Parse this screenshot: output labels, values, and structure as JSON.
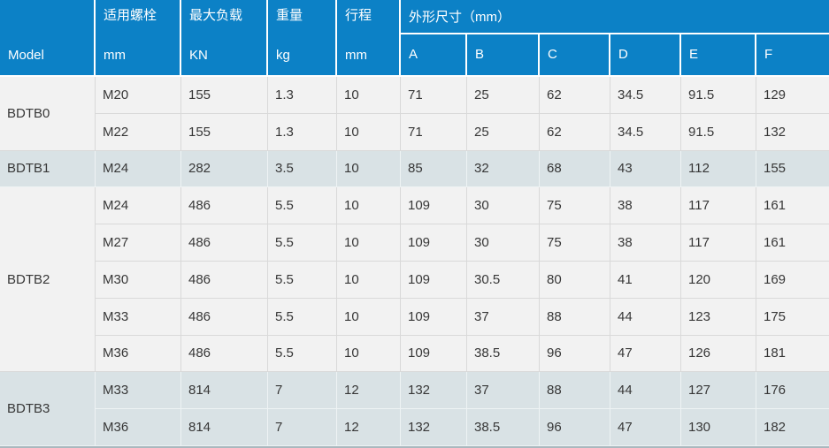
{
  "colors": {
    "header_bg": "#0c81c6",
    "row_light": "#f2f2f2",
    "row_tinted": "#d9e2e5",
    "bottom_bar": "#aab8be"
  },
  "table": {
    "header": {
      "model_label": "Model",
      "columns": [
        {
          "title": "适用螺栓",
          "unit": "mm"
        },
        {
          "title": "最大负载",
          "unit": "KN"
        },
        {
          "title": "重量",
          "unit": "kg"
        },
        {
          "title": "行程",
          "unit": "mm"
        }
      ],
      "dimensions_label": "外形尺寸（mm）",
      "dimension_columns": [
        "A",
        "B",
        "C",
        "D",
        "E",
        "F"
      ]
    },
    "groups": [
      {
        "model": "BDTB0",
        "tinted": false,
        "rows": [
          {
            "bolt": "M20",
            "load": "155",
            "weight": "1.3",
            "stroke": "10",
            "dims": [
              "71",
              "25",
              "62",
              "34.5",
              "91.5",
              "129"
            ]
          },
          {
            "bolt": "M22",
            "load": "155",
            "weight": "1.3",
            "stroke": "10",
            "dims": [
              "71",
              "25",
              "62",
              "34.5",
              "91.5",
              "132"
            ]
          }
        ]
      },
      {
        "model": "BDTB1",
        "tinted": true,
        "rows": [
          {
            "bolt": "M24",
            "load": "282",
            "weight": "3.5",
            "stroke": "10",
            "dims": [
              "85",
              "32",
              "68",
              "43",
              "112",
              "155"
            ]
          }
        ]
      },
      {
        "model": "BDTB2",
        "tinted": false,
        "rows": [
          {
            "bolt": "M24",
            "load": "486",
            "weight": "5.5",
            "stroke": "10",
            "dims": [
              "109",
              "30",
              "75",
              "38",
              "117",
              "161"
            ]
          },
          {
            "bolt": "M27",
            "load": "486",
            "weight": "5.5",
            "stroke": "10",
            "dims": [
              "109",
              "30",
              "75",
              "38",
              "117",
              "161"
            ]
          },
          {
            "bolt": "M30",
            "load": "486",
            "weight": "5.5",
            "stroke": "10",
            "dims": [
              "109",
              "30.5",
              "80",
              "41",
              "120",
              "169"
            ]
          },
          {
            "bolt": "M33",
            "load": "486",
            "weight": "5.5",
            "stroke": "10",
            "dims": [
              "109",
              "37",
              "88",
              "44",
              "123",
              "175"
            ]
          },
          {
            "bolt": "M36",
            "load": "486",
            "weight": "5.5",
            "stroke": "10",
            "dims": [
              "109",
              "38.5",
              "96",
              "47",
              "126",
              "181"
            ]
          }
        ]
      },
      {
        "model": "BDTB3",
        "tinted": true,
        "rows": [
          {
            "bolt": "M33",
            "load": "814",
            "weight": "7",
            "stroke": "12",
            "dims": [
              "132",
              "37",
              "88",
              "44",
              "127",
              "176"
            ]
          },
          {
            "bolt": "M36",
            "load": "814",
            "weight": "7",
            "stroke": "12",
            "dims": [
              "132",
              "38.5",
              "96",
              "47",
              "130",
              "182"
            ]
          }
        ]
      }
    ]
  },
  "chart_data": {
    "type": "table",
    "columns": [
      "Model",
      "适用螺栓 mm",
      "最大负载 KN",
      "重量 kg",
      "行程 mm",
      "外形尺寸A",
      "外形尺寸B",
      "外形尺寸C",
      "外形尺寸D",
      "外形尺寸E",
      "外形尺寸F"
    ],
    "rows": [
      [
        "BDTB0",
        "M20",
        "155",
        "1.3",
        "10",
        "71",
        "25",
        "62",
        "34.5",
        "91.5",
        "129"
      ],
      [
        "BDTB0",
        "M22",
        "155",
        "1.3",
        "10",
        "71",
        "25",
        "62",
        "34.5",
        "91.5",
        "132"
      ],
      [
        "BDTB1",
        "M24",
        "282",
        "3.5",
        "10",
        "85",
        "32",
        "68",
        "43",
        "112",
        "155"
      ],
      [
        "BDTB2",
        "M24",
        "486",
        "5.5",
        "10",
        "109",
        "30",
        "75",
        "38",
        "117",
        "161"
      ],
      [
        "BDTB2",
        "M27",
        "486",
        "5.5",
        "10",
        "109",
        "30",
        "75",
        "38",
        "117",
        "161"
      ],
      [
        "BDTB2",
        "M30",
        "486",
        "5.5",
        "10",
        "109",
        "30.5",
        "80",
        "41",
        "120",
        "169"
      ],
      [
        "BDTB2",
        "M33",
        "486",
        "5.5",
        "10",
        "109",
        "37",
        "88",
        "44",
        "123",
        "175"
      ],
      [
        "BDTB2",
        "M36",
        "486",
        "5.5",
        "10",
        "109",
        "38.5",
        "96",
        "47",
        "126",
        "181"
      ],
      [
        "BDTB3",
        "M33",
        "814",
        "7",
        "12",
        "132",
        "37",
        "88",
        "44",
        "127",
        "176"
      ],
      [
        "BDTB3",
        "M36",
        "814",
        "7",
        "12",
        "132",
        "38.5",
        "96",
        "47",
        "130",
        "182"
      ]
    ],
    "title": "外形尺寸（mm）"
  }
}
